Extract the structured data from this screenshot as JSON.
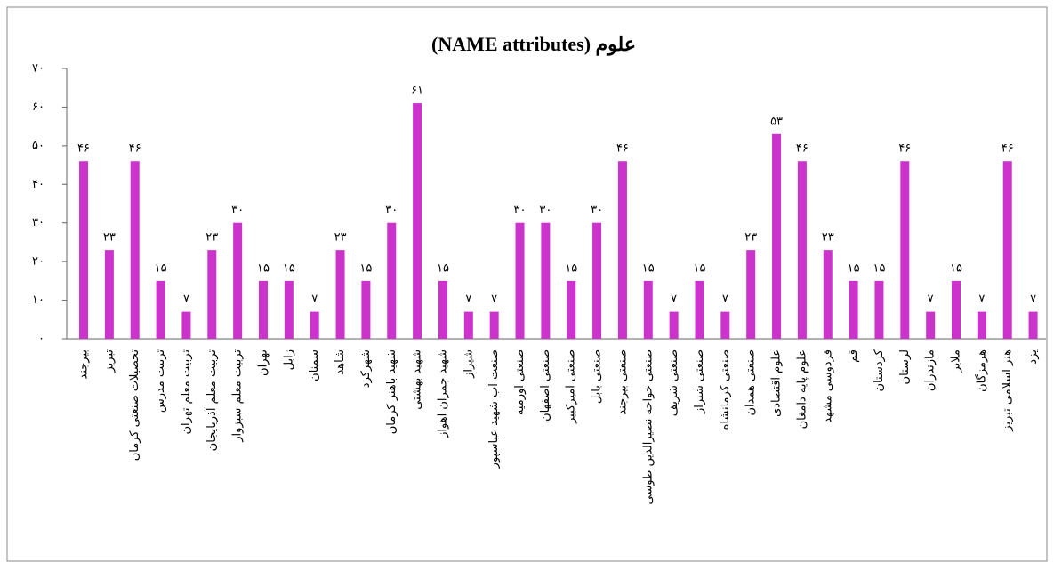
{
  "chart_data": {
    "type": "bar",
    "title": "علوم (NAME attributes)",
    "categories": [
      "بیرجند",
      "تبریز",
      "تحصیلات صنعتی کرمان",
      "تربیت مدرس",
      "تربیت معلم تهران",
      "تربیت معلم آذربایجان",
      "تربیت معلم سبزوار",
      "تهران",
      "زابل",
      "سمنان",
      "شاهد",
      "شهرکرد",
      "شهید باهنر کرمان",
      "شهید بهشتی",
      "شهید چمران اهواز",
      "شیراز",
      "صنعت آب شهید عباسپور",
      "صنعتی اورمیه",
      "صنعتی اصفهان",
      "صنعتی امیرکبیر",
      "صنعتی بابل",
      "صنعتی بیرجند",
      "صنعتی خواجه نصیرالدین طوسی",
      "صنعتی شریف",
      "صنعتی شیراز",
      "صنعتی کرمانشاه",
      "صنعتی همدان",
      "علوم اقتصادی",
      "علوم پایه دامغان",
      "فردوسی مشهد",
      "قم",
      "کردستان",
      "لرستان",
      "مازندران",
      "ملایر",
      "هرمزگان",
      "هنر اسلامی تبریز",
      "یزد"
    ],
    "values": [
      46,
      23,
      46,
      15,
      7,
      23,
      30,
      15,
      15,
      7,
      23,
      15,
      30,
      61,
      15,
      7,
      7,
      30,
      30,
      15,
      30,
      46,
      15,
      7,
      15,
      7,
      23,
      53,
      46,
      23,
      15,
      15,
      46,
      7,
      15,
      7,
      46,
      7
    ],
    "value_labels": [
      "۴۶",
      "۲۳",
      "۴۶",
      "۱۵",
      "۷",
      "۲۳",
      "۳۰",
      "۱۵",
      "۱۵",
      "۷",
      "۲۳",
      "۱۵",
      "۳۰",
      "۶۱",
      "۱۵",
      "۷",
      "۷",
      "۳۰",
      "۳۰",
      "۱۵",
      "۳۰",
      "۴۶",
      "۱۵",
      "۷",
      "۱۵",
      "۷",
      "۲۳",
      "۵۳",
      "۴۶",
      "۲۳",
      "۱۵",
      "۱۵",
      "۴۶",
      "۷",
      "۱۵",
      "۷",
      "۴۶",
      "۷"
    ],
    "color": "#cc33cc",
    "ylim": [
      0,
      70
    ],
    "yticks": [
      {
        "value": 0,
        "label": "۰"
      },
      {
        "value": 10,
        "label": "۱۰"
      },
      {
        "value": 20,
        "label": "۲۰"
      },
      {
        "value": 30,
        "label": "۳۰"
      },
      {
        "value": 40,
        "label": "۴۰"
      },
      {
        "value": 50,
        "label": "۵۰"
      },
      {
        "value": 60,
        "label": "۶۰"
      },
      {
        "value": 70,
        "label": "۷۰"
      }
    ]
  }
}
